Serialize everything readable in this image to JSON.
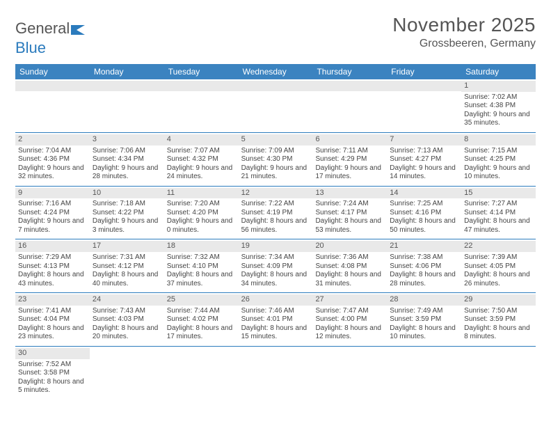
{
  "logo": {
    "text1": "General",
    "text2": "Blue"
  },
  "title": "November 2025",
  "subtitle": "Grossbeeren, Germany",
  "colors": {
    "header_bg": "#3b83c0",
    "header_text": "#ffffff",
    "divider": "#2b7bbd",
    "daynum_bg": "#e9e9e9",
    "body_text": "#444444",
    "title_text": "#555555",
    "logo_blue": "#2b7bbd",
    "page_bg": "#ffffff"
  },
  "weekdays": [
    "Sunday",
    "Monday",
    "Tuesday",
    "Wednesday",
    "Thursday",
    "Friday",
    "Saturday"
  ],
  "weeks": [
    [
      null,
      null,
      null,
      null,
      null,
      null,
      {
        "n": "1",
        "sr": "7:02 AM",
        "ss": "4:38 PM",
        "dl": "9 hours and 35 minutes."
      }
    ],
    [
      {
        "n": "2",
        "sr": "7:04 AM",
        "ss": "4:36 PM",
        "dl": "9 hours and 32 minutes."
      },
      {
        "n": "3",
        "sr": "7:06 AM",
        "ss": "4:34 PM",
        "dl": "9 hours and 28 minutes."
      },
      {
        "n": "4",
        "sr": "7:07 AM",
        "ss": "4:32 PM",
        "dl": "9 hours and 24 minutes."
      },
      {
        "n": "5",
        "sr": "7:09 AM",
        "ss": "4:30 PM",
        "dl": "9 hours and 21 minutes."
      },
      {
        "n": "6",
        "sr": "7:11 AM",
        "ss": "4:29 PM",
        "dl": "9 hours and 17 minutes."
      },
      {
        "n": "7",
        "sr": "7:13 AM",
        "ss": "4:27 PM",
        "dl": "9 hours and 14 minutes."
      },
      {
        "n": "8",
        "sr": "7:15 AM",
        "ss": "4:25 PM",
        "dl": "9 hours and 10 minutes."
      }
    ],
    [
      {
        "n": "9",
        "sr": "7:16 AM",
        "ss": "4:24 PM",
        "dl": "9 hours and 7 minutes."
      },
      {
        "n": "10",
        "sr": "7:18 AM",
        "ss": "4:22 PM",
        "dl": "9 hours and 3 minutes."
      },
      {
        "n": "11",
        "sr": "7:20 AM",
        "ss": "4:20 PM",
        "dl": "9 hours and 0 minutes."
      },
      {
        "n": "12",
        "sr": "7:22 AM",
        "ss": "4:19 PM",
        "dl": "8 hours and 56 minutes."
      },
      {
        "n": "13",
        "sr": "7:24 AM",
        "ss": "4:17 PM",
        "dl": "8 hours and 53 minutes."
      },
      {
        "n": "14",
        "sr": "7:25 AM",
        "ss": "4:16 PM",
        "dl": "8 hours and 50 minutes."
      },
      {
        "n": "15",
        "sr": "7:27 AM",
        "ss": "4:14 PM",
        "dl": "8 hours and 47 minutes."
      }
    ],
    [
      {
        "n": "16",
        "sr": "7:29 AM",
        "ss": "4:13 PM",
        "dl": "8 hours and 43 minutes."
      },
      {
        "n": "17",
        "sr": "7:31 AM",
        "ss": "4:12 PM",
        "dl": "8 hours and 40 minutes."
      },
      {
        "n": "18",
        "sr": "7:32 AM",
        "ss": "4:10 PM",
        "dl": "8 hours and 37 minutes."
      },
      {
        "n": "19",
        "sr": "7:34 AM",
        "ss": "4:09 PM",
        "dl": "8 hours and 34 minutes."
      },
      {
        "n": "20",
        "sr": "7:36 AM",
        "ss": "4:08 PM",
        "dl": "8 hours and 31 minutes."
      },
      {
        "n": "21",
        "sr": "7:38 AM",
        "ss": "4:06 PM",
        "dl": "8 hours and 28 minutes."
      },
      {
        "n": "22",
        "sr": "7:39 AM",
        "ss": "4:05 PM",
        "dl": "8 hours and 26 minutes."
      }
    ],
    [
      {
        "n": "23",
        "sr": "7:41 AM",
        "ss": "4:04 PM",
        "dl": "8 hours and 23 minutes."
      },
      {
        "n": "24",
        "sr": "7:43 AM",
        "ss": "4:03 PM",
        "dl": "8 hours and 20 minutes."
      },
      {
        "n": "25",
        "sr": "7:44 AM",
        "ss": "4:02 PM",
        "dl": "8 hours and 17 minutes."
      },
      {
        "n": "26",
        "sr": "7:46 AM",
        "ss": "4:01 PM",
        "dl": "8 hours and 15 minutes."
      },
      {
        "n": "27",
        "sr": "7:47 AM",
        "ss": "4:00 PM",
        "dl": "8 hours and 12 minutes."
      },
      {
        "n": "28",
        "sr": "7:49 AM",
        "ss": "3:59 PM",
        "dl": "8 hours and 10 minutes."
      },
      {
        "n": "29",
        "sr": "7:50 AM",
        "ss": "3:59 PM",
        "dl": "8 hours and 8 minutes."
      }
    ],
    [
      {
        "n": "30",
        "sr": "7:52 AM",
        "ss": "3:58 PM",
        "dl": "8 hours and 5 minutes."
      },
      null,
      null,
      null,
      null,
      null,
      null
    ]
  ],
  "labels": {
    "sunrise": "Sunrise: ",
    "sunset": "Sunset: ",
    "daylight": "Daylight: "
  }
}
